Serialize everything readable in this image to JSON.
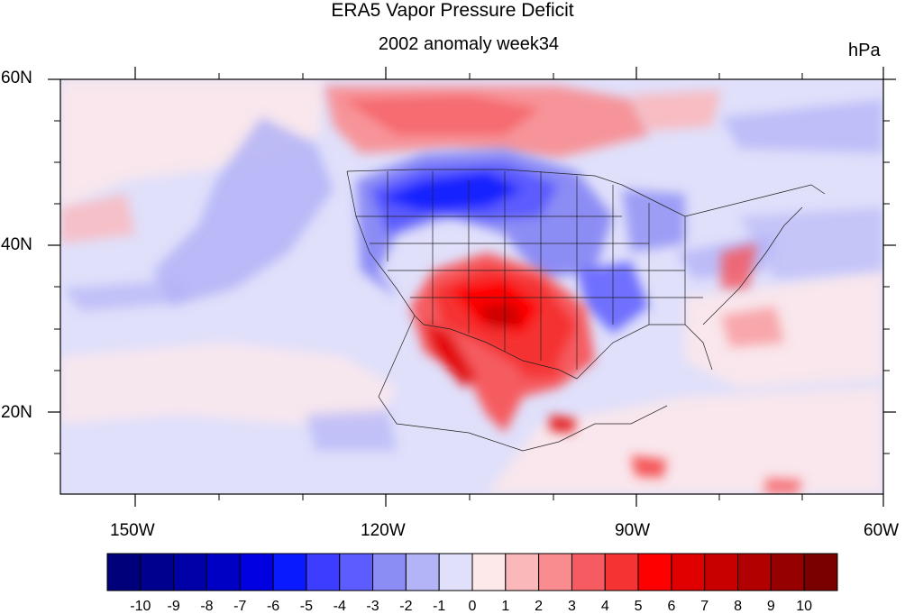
{
  "title": "ERA5 Vapor Pressure Deficit",
  "subtitle": "2002 anomaly week34",
  "units": "hPa",
  "lat_labels": [
    "60N",
    "40N",
    "20N"
  ],
  "lon_labels": [
    "150W",
    "120W",
    "90W",
    "60W"
  ],
  "colorbar": {
    "tick_labels": [
      "-10",
      "-9",
      "-8",
      "-7",
      "-6",
      "-5",
      "-4",
      "-3",
      "-2",
      "-1",
      "0",
      "1",
      "2",
      "3",
      "4",
      "5",
      "6",
      "7",
      "8",
      "9",
      "10"
    ],
    "colors": [
      "#00007a",
      "#00008f",
      "#0000a8",
      "#0000c4",
      "#0000e0",
      "#0a1aff",
      "#3d3dff",
      "#5c5cff",
      "#8c8cf5",
      "#b3b3f7",
      "#e0e0fb",
      "#fde8ea",
      "#fbb8bb",
      "#f88c8f",
      "#f55b60",
      "#f53333",
      "#ff0000",
      "#e00000",
      "#c80000",
      "#b20000",
      "#970000",
      "#7a0000"
    ]
  }
}
